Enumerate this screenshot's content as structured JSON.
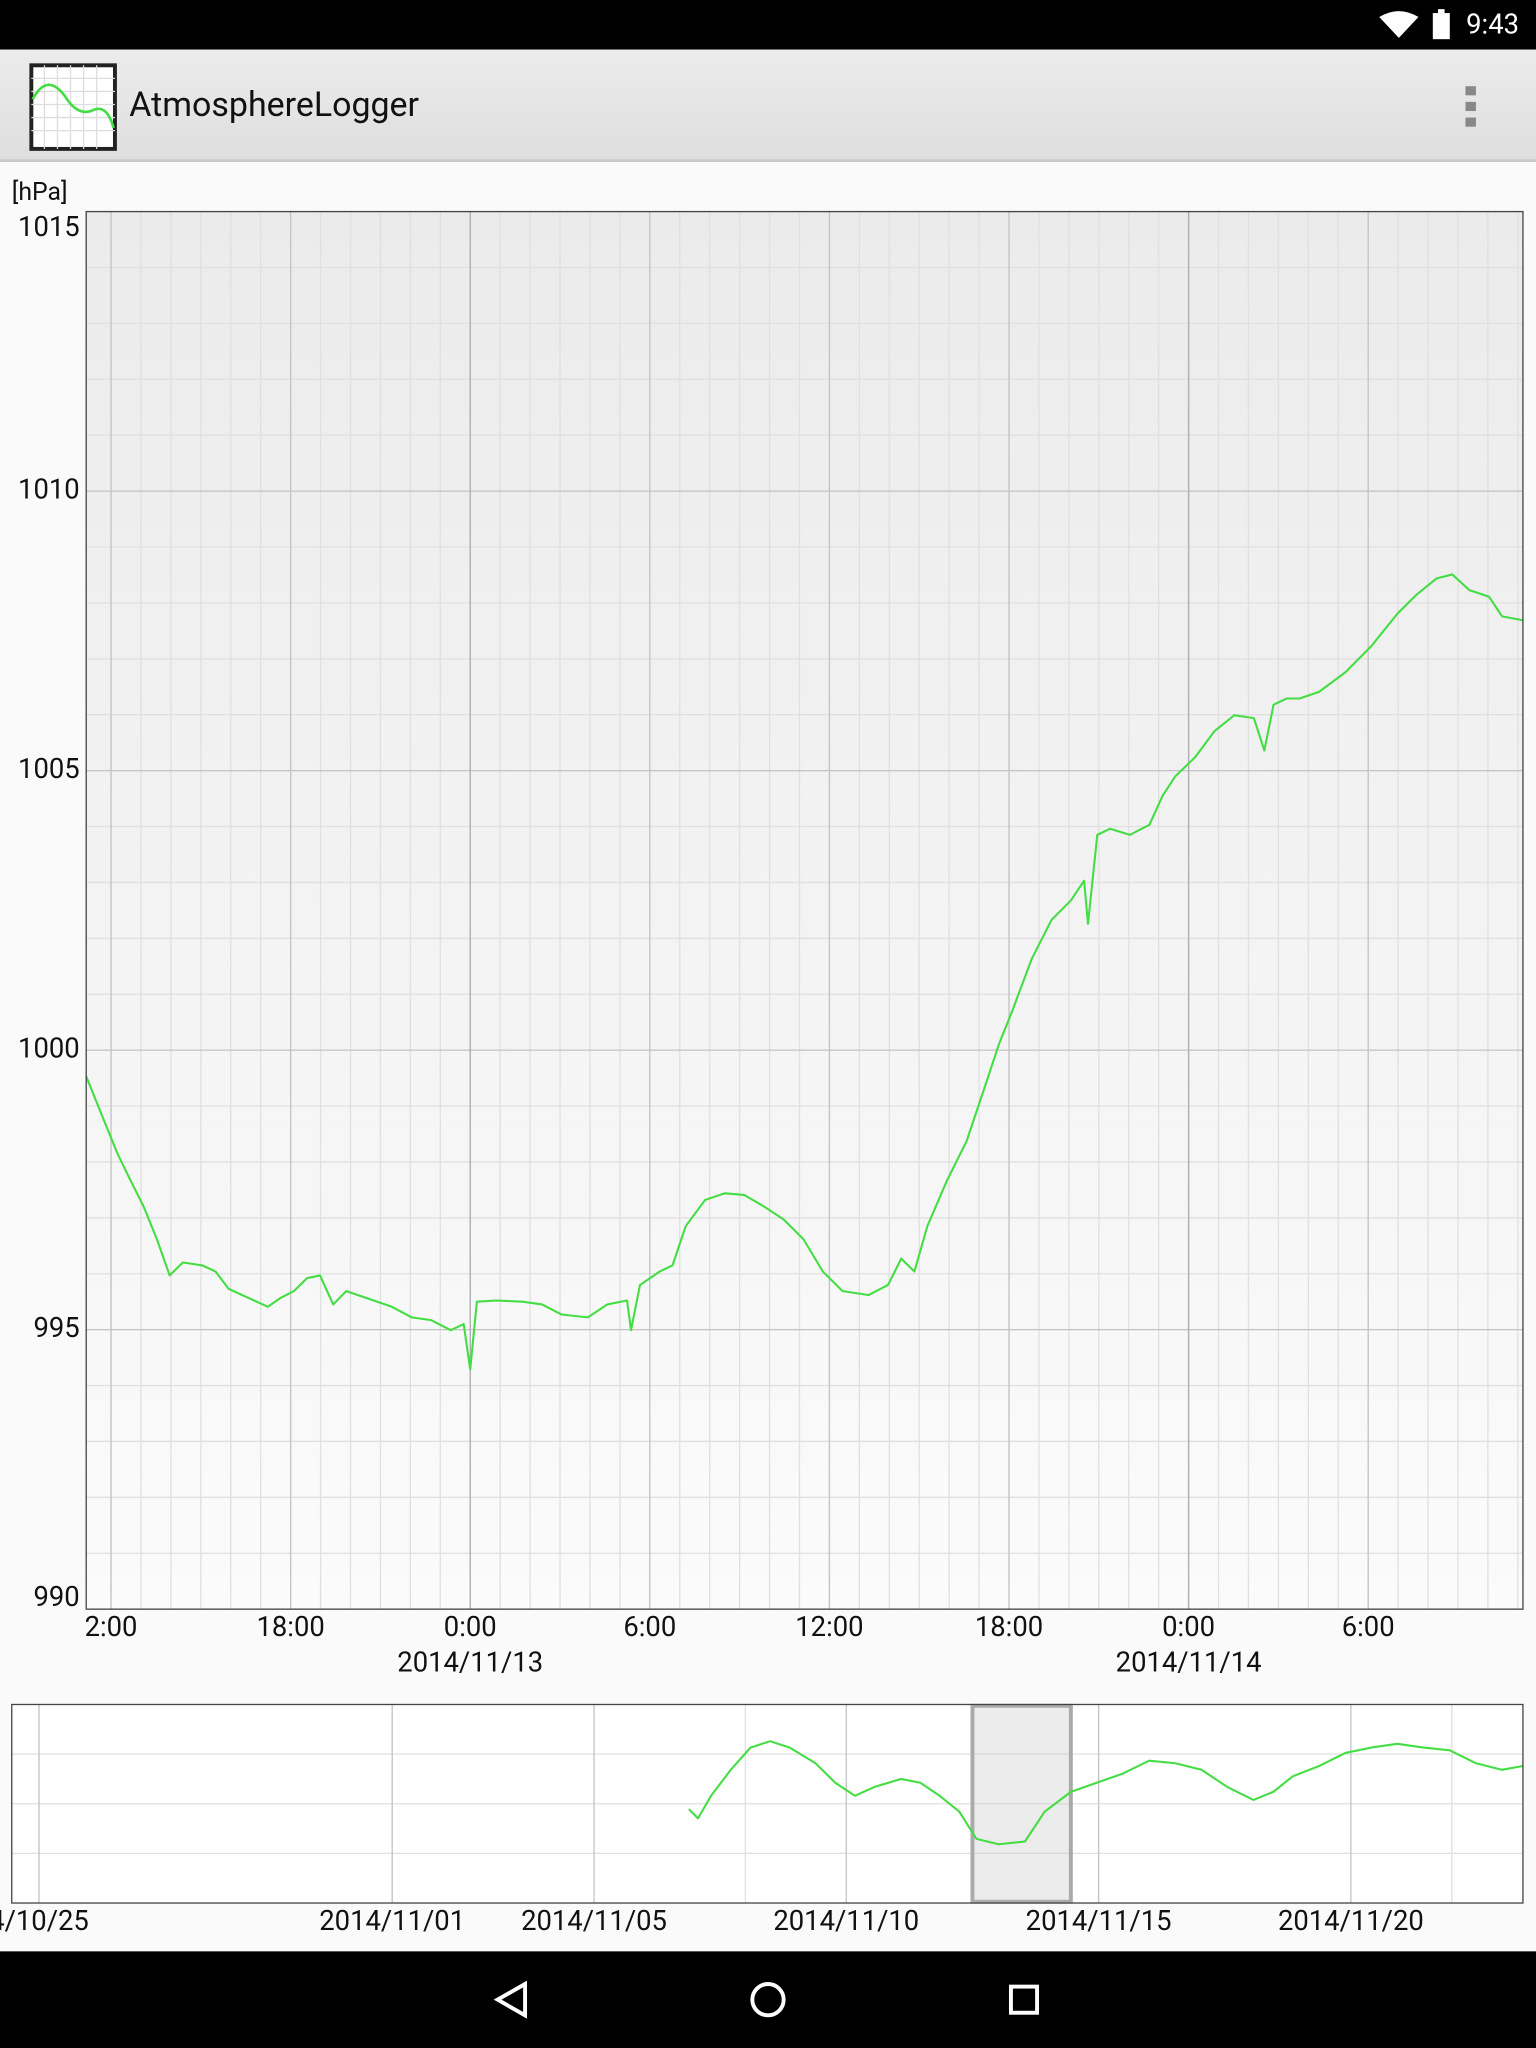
{
  "status_bar": {
    "time": "9:43"
  },
  "app_bar": {
    "title": "AtmosphereLogger"
  },
  "chart_data": [
    {
      "type": "line",
      "y_label": "[hPa]",
      "color": "#44dd44",
      "grid": true,
      "xlim": [
        -12.83,
        35.17
      ],
      "ylim": [
        990,
        1015
      ],
      "yticks": [
        990,
        995,
        1000,
        1005,
        1010,
        1015
      ],
      "xticks": [
        {
          "value": -12,
          "label": "2:00"
        },
        {
          "value": -6,
          "label": "18:00"
        },
        {
          "value": 0,
          "label": "0:00"
        },
        {
          "value": 6,
          "label": "6:00"
        },
        {
          "value": 12,
          "label": "12:00"
        },
        {
          "value": 18,
          "label": "18:00"
        },
        {
          "value": 24,
          "label": "0:00"
        },
        {
          "value": 30,
          "label": "6:00"
        }
      ],
      "date_labels": [
        {
          "value": 0,
          "label": "2014/11/13"
        },
        {
          "value": 24,
          "label": "2014/11/14"
        }
      ],
      "x": [
        -12.83,
        -12.22,
        -11.78,
        -11.35,
        -10.91,
        -10.47,
        -10.04,
        -9.6,
        -8.95,
        -8.51,
        -8.07,
        -7.42,
        -6.76,
        -6.33,
        -5.89,
        -5.45,
        -5.02,
        -4.58,
        -4.14,
        -3.49,
        -2.62,
        -1.96,
        -1.31,
        -0.65,
        -0.22,
        0,
        0.22,
        0.87,
        1.75,
        2.4,
        3.05,
        3.93,
        4.58,
        5.24,
        5.37,
        5.67,
        6.33,
        6.76,
        7.2,
        7.85,
        8.51,
        9.16,
        9.82,
        10.47,
        11.13,
        11.78,
        12.44,
        13.31,
        13.96,
        14.4,
        14.84,
        15.27,
        15.93,
        16.58,
        17.24,
        17.67,
        18.11,
        18.76,
        19.42,
        20.07,
        20.51,
        20.64,
        20.95,
        21.38,
        22.04,
        22.69,
        23.13,
        23.56,
        24.22,
        24.87,
        25.53,
        26.18,
        26.53,
        26.84,
        27.27,
        27.71,
        28.36,
        29.24,
        30.11,
        30.98,
        31.64,
        32.29,
        32.81,
        33.38,
        34.04,
        34.47,
        35.17
      ],
      "values": [
        999.53,
        998.72,
        998.14,
        997.67,
        997.2,
        996.62,
        995.97,
        996.2,
        996.15,
        996.04,
        995.73,
        995.57,
        995.41,
        995.57,
        995.69,
        995.92,
        995.97,
        995.45,
        995.69,
        995.57,
        995.41,
        995.22,
        995.17,
        994.99,
        995.1,
        994.29,
        995.5,
        995.52,
        995.5,
        995.45,
        995.27,
        995.22,
        995.45,
        995.52,
        994.99,
        995.8,
        996.04,
        996.15,
        996.85,
        997.32,
        997.44,
        997.41,
        997.2,
        996.97,
        996.62,
        996.04,
        995.69,
        995.62,
        995.8,
        996.27,
        996.04,
        996.85,
        997.67,
        998.37,
        999.42,
        1000.12,
        1000.7,
        1001.63,
        1002.33,
        1002.68,
        1003.03,
        1002.26,
        1003.85,
        1003.96,
        1003.85,
        1004.03,
        1004.55,
        1004.9,
        1005.24,
        1005.71,
        1005.99,
        1005.94,
        1005.36,
        1006.18,
        1006.29,
        1006.29,
        1006.41,
        1006.76,
        1007.23,
        1007.81,
        1008.16,
        1008.44,
        1008.51,
        1008.23,
        1008.11,
        1007.76,
        1007.69
      ]
    },
    {
      "type": "line",
      "color": "#44dd44",
      "grid": true,
      "xlim": [
        -7.54,
        22.41
      ],
      "ylim": [
        980,
        1032
      ],
      "xticks": [
        {
          "value": -7,
          "label": "4/10/25"
        },
        {
          "value": 0,
          "label": "2014/11/01"
        },
        {
          "value": 4,
          "label": "2014/11/05"
        },
        {
          "value": 9,
          "label": "2014/11/10"
        },
        {
          "value": 14,
          "label": "2014/11/15"
        },
        {
          "value": 19,
          "label": "2014/11/20"
        }
      ],
      "window": [
        11.5,
        13.45
      ],
      "x": [
        5.88,
        6.06,
        6.32,
        6.71,
        7.1,
        7.49,
        7.88,
        8.39,
        8.78,
        9.17,
        9.56,
        10.08,
        10.47,
        10.85,
        11.24,
        11.58,
        12.02,
        12.54,
        12.93,
        13.45,
        13.96,
        14.48,
        15.0,
        15.52,
        16.04,
        16.55,
        17.07,
        17.46,
        17.85,
        18.37,
        18.89,
        19.4,
        19.92,
        20.44,
        20.96,
        21.48,
        21.99,
        22.41
      ],
      "values": [
        1004.6,
        1002.2,
        1008.1,
        1014.9,
        1020.7,
        1022.4,
        1020.7,
        1016.6,
        1011.5,
        1008.1,
        1010.4,
        1012.5,
        1011.5,
        1008.1,
        1003.9,
        996.8,
        995.4,
        996.1,
        1003.9,
        1009.1,
        1011.5,
        1013.9,
        1017.3,
        1016.6,
        1014.9,
        1010.4,
        1007.0,
        1009.1,
        1013.2,
        1015.9,
        1019.3,
        1020.7,
        1021.7,
        1020.7,
        1020.0,
        1016.6,
        1014.9,
        1015.9
      ]
    }
  ]
}
